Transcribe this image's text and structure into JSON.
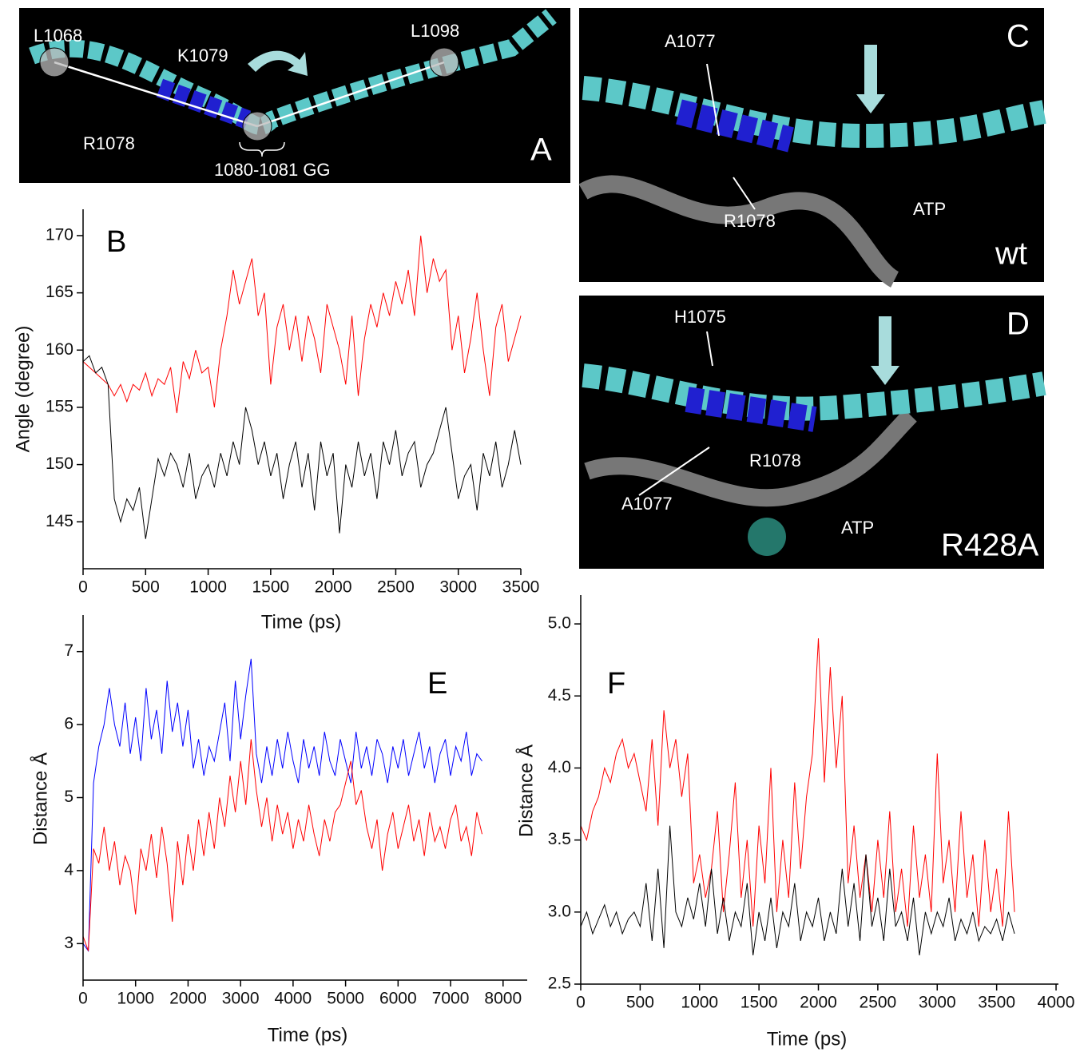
{
  "panels": [
    {
      "letter": "A",
      "labels": [
        "L1068",
        "K1079",
        "L1098",
        "R1078",
        "1080-1081 GG"
      ]
    },
    {
      "letter": "C",
      "labels": [
        "A1077",
        "R1078",
        "ATP",
        "wt"
      ]
    },
    {
      "letter": "D",
      "labels": [
        "H1075",
        "R1078",
        "A1077",
        "ATP",
        "R428A"
      ]
    }
  ],
  "chart_data": [
    {
      "type": "line",
      "label": "B",
      "x_label": "Time (ps)",
      "y_label": "Angle (degree)",
      "xlim": [
        0,
        3500
      ],
      "ylim": [
        140.9,
        172.3
      ],
      "xticks": [
        0,
        500,
        1000,
        1500,
        2000,
        2500,
        3000,
        3500
      ],
      "yticks": [
        145,
        150,
        155,
        160,
        165,
        170
      ],
      "x": [
        0,
        50,
        100,
        150,
        200,
        250,
        300,
        350,
        400,
        450,
        500,
        550,
        600,
        650,
        700,
        750,
        800,
        850,
        900,
        950,
        1000,
        1050,
        1100,
        1150,
        1200,
        1250,
        1300,
        1350,
        1400,
        1450,
        1500,
        1550,
        1600,
        1650,
        1700,
        1750,
        1800,
        1850,
        1900,
        1950,
        2000,
        2050,
        2100,
        2150,
        2200,
        2250,
        2300,
        2350,
        2400,
        2450,
        2500,
        2550,
        2600,
        2650,
        2700,
        2750,
        2800,
        2850,
        2900,
        2950,
        3000,
        3050,
        3100,
        3150,
        3200,
        3250,
        3300,
        3350,
        3400,
        3450,
        3500
      ],
      "series": [
        {
          "color": "#ff0000",
          "values": [
            159,
            158.5,
            158,
            157.5,
            157,
            156,
            157,
            155.5,
            157,
            156.5,
            158,
            156,
            157.5,
            157,
            158.5,
            154.5,
            159,
            157.5,
            160,
            158,
            158.5,
            155,
            160,
            163,
            167,
            164,
            166,
            168,
            163,
            165,
            157,
            162,
            164,
            160,
            163,
            159,
            163,
            161,
            158,
            164,
            162,
            160,
            157,
            163,
            156,
            161,
            164,
            162,
            165,
            163,
            166,
            164,
            167,
            163,
            170,
            165,
            168,
            166,
            167,
            160,
            163,
            158,
            161,
            165,
            160,
            156,
            162,
            164,
            159,
            161,
            163
          ]
        },
        {
          "color": "#000000",
          "values": [
            159,
            159.5,
            158,
            158.5,
            157,
            147,
            145,
            147,
            146,
            148,
            143.5,
            147,
            150.5,
            149,
            151,
            150,
            148,
            151,
            147,
            149,
            150,
            148,
            151,
            149,
            152,
            150,
            155,
            153,
            150,
            152,
            149,
            151,
            147,
            150,
            152,
            148,
            151,
            146,
            152,
            149,
            151,
            144,
            150,
            148,
            152,
            149,
            151,
            147,
            152,
            150,
            153,
            149,
            151,
            152,
            148,
            150,
            151,
            153,
            155,
            151,
            147,
            149,
            150,
            146,
            151,
            149,
            152,
            148,
            150,
            153,
            150
          ]
        }
      ]
    },
    {
      "type": "line",
      "label": "E",
      "x_label": "Time (ps)",
      "y_label": "Distance Å",
      "xlim": [
        0,
        8460
      ],
      "ylim": [
        2.5,
        7.5
      ],
      "xticks": [
        0,
        1000,
        2000,
        3000,
        4000,
        5000,
        6000,
        7000,
        8000
      ],
      "yticks": [
        3,
        4,
        5,
        6,
        7
      ],
      "x": [
        0,
        100,
        200,
        300,
        400,
        500,
        600,
        700,
        800,
        900,
        1000,
        1100,
        1200,
        1300,
        1400,
        1500,
        1600,
        1700,
        1800,
        1900,
        2000,
        2100,
        2200,
        2300,
        2400,
        2500,
        2600,
        2700,
        2800,
        2900,
        3000,
        3100,
        3200,
        3300,
        3400,
        3500,
        3600,
        3700,
        3800,
        3900,
        4000,
        4100,
        4200,
        4300,
        4400,
        4500,
        4600,
        4700,
        4800,
        4900,
        5000,
        5100,
        5200,
        5300,
        5400,
        5500,
        5600,
        5700,
        5800,
        5900,
        6000,
        6100,
        6200,
        6300,
        6400,
        6500,
        6600,
        6700,
        6800,
        6900,
        7000,
        7100,
        7200,
        7300,
        7400,
        7500,
        7600
      ],
      "series": [
        {
          "color": "#0000ff",
          "values": [
            3.0,
            2.9,
            5.2,
            5.7,
            6.0,
            6.5,
            6.0,
            5.7,
            6.3,
            5.6,
            6.1,
            5.5,
            6.5,
            5.8,
            6.2,
            5.6,
            6.6,
            5.9,
            6.3,
            5.7,
            6.2,
            5.4,
            5.8,
            5.3,
            5.7,
            5.5,
            5.9,
            6.3,
            5.5,
            6.6,
            5.8,
            6.4,
            6.9,
            5.6,
            5.2,
            5.7,
            5.3,
            5.8,
            5.4,
            5.9,
            5.5,
            5.2,
            5.8,
            5.4,
            5.7,
            5.3,
            5.9,
            5.5,
            5.3,
            5.8,
            5.5,
            5.2,
            5.9,
            5.4,
            5.7,
            5.3,
            5.8,
            5.6,
            5.2,
            5.7,
            5.4,
            5.8,
            5.3,
            5.6,
            5.9,
            5.4,
            5.7,
            5.2,
            5.6,
            5.8,
            5.3,
            5.7,
            5.5,
            5.9,
            5.3,
            5.6,
            5.5
          ]
        },
        {
          "color": "#ff0000",
          "values": [
            3.1,
            2.9,
            4.3,
            4.1,
            4.6,
            4.0,
            4.4,
            3.8,
            4.2,
            4.0,
            3.4,
            4.3,
            4.0,
            4.5,
            3.9,
            4.6,
            4.1,
            3.3,
            4.4,
            3.8,
            4.5,
            4.0,
            4.7,
            4.2,
            4.8,
            4.3,
            5.0,
            4.6,
            5.3,
            4.8,
            5.5,
            4.9,
            5.8,
            5.1,
            4.6,
            5.0,
            4.4,
            4.9,
            4.5,
            4.8,
            4.3,
            4.7,
            4.4,
            4.9,
            4.5,
            4.2,
            4.7,
            4.4,
            4.8,
            4.9,
            5.2,
            5.5,
            4.9,
            5.1,
            4.6,
            4.3,
            4.7,
            4.0,
            4.5,
            4.8,
            4.3,
            4.6,
            4.9,
            4.4,
            4.7,
            4.2,
            4.8,
            4.4,
            4.6,
            4.3,
            4.7,
            4.9,
            4.4,
            4.6,
            4.2,
            4.8,
            4.5
          ]
        }
      ]
    },
    {
      "type": "line",
      "label": "F",
      "x_label": "Time (ps)",
      "y_label": "Distance Å",
      "xlim": [
        0,
        4020
      ],
      "ylim": [
        2.5,
        5.2
      ],
      "xticks": [
        0,
        500,
        1000,
        1500,
        2000,
        2500,
        3000,
        3500,
        4000
      ],
      "yticks": [
        2.5,
        {
          "value": 3,
          "label": "3.0"
        },
        3.5,
        {
          "value": 4,
          "label": "4.0"
        },
        4.5,
        {
          "value": 5,
          "label": "5.0"
        }
      ],
      "x": [
        0,
        50,
        100,
        150,
        200,
        250,
        300,
        350,
        400,
        450,
        500,
        550,
        600,
        650,
        700,
        750,
        800,
        850,
        900,
        950,
        1000,
        1050,
        1100,
        1150,
        1200,
        1250,
        1300,
        1350,
        1400,
        1450,
        1500,
        1550,
        1600,
        1650,
        1700,
        1750,
        1800,
        1850,
        1900,
        1950,
        2000,
        2050,
        2100,
        2150,
        2200,
        2250,
        2300,
        2350,
        2400,
        2450,
        2500,
        2550,
        2600,
        2650,
        2700,
        2750,
        2800,
        2850,
        2900,
        2950,
        3000,
        3050,
        3100,
        3150,
        3200,
        3250,
        3300,
        3350,
        3400,
        3450,
        3500,
        3550,
        3600,
        3650
      ],
      "series": [
        {
          "color": "#ff0000",
          "values": [
            3.6,
            3.5,
            3.7,
            3.8,
            4.0,
            3.9,
            4.1,
            4.2,
            4.0,
            4.1,
            3.9,
            3.7,
            4.2,
            3.6,
            4.4,
            4.0,
            4.2,
            3.8,
            4.1,
            3.2,
            3.4,
            3.1,
            3.3,
            3.7,
            3.0,
            3.4,
            3.9,
            3.1,
            3.5,
            2.9,
            3.6,
            3.2,
            4.0,
            3.0,
            3.5,
            3.1,
            3.9,
            3.3,
            3.8,
            4.1,
            4.9,
            3.9,
            4.7,
            4.0,
            4.5,
            3.2,
            3.6,
            3.1,
            3.4,
            3.0,
            3.5,
            3.1,
            3.7,
            3.0,
            3.3,
            2.9,
            3.6,
            3.1,
            3.4,
            3.0,
            4.1,
            3.2,
            3.5,
            3.0,
            3.7,
            3.1,
            3.4,
            2.9,
            3.5,
            3.0,
            3.3,
            2.9,
            3.7,
            3.0
          ]
        },
        {
          "color": "#000000",
          "values": [
            2.9,
            3.0,
            2.85,
            2.95,
            3.05,
            2.9,
            3.0,
            2.85,
            2.95,
            3.0,
            2.9,
            3.2,
            2.8,
            3.3,
            2.75,
            3.6,
            3.0,
            2.9,
            3.1,
            2.95,
            3.2,
            2.9,
            3.3,
            2.85,
            3.1,
            2.8,
            3.0,
            2.9,
            3.2,
            2.7,
            3.0,
            2.8,
            3.1,
            2.75,
            3.0,
            2.9,
            3.2,
            2.8,
            3.0,
            2.9,
            3.1,
            2.8,
            3.0,
            2.85,
            3.3,
            2.9,
            3.2,
            2.8,
            3.4,
            2.9,
            3.1,
            2.8,
            3.3,
            2.9,
            3.0,
            2.8,
            3.1,
            2.7,
            3.0,
            2.85,
            3.0,
            2.9,
            3.1,
            2.8,
            2.95,
            2.85,
            3.0,
            2.8,
            2.9,
            2.85,
            2.95,
            2.8,
            3.0,
            2.85
          ]
        }
      ]
    }
  ]
}
